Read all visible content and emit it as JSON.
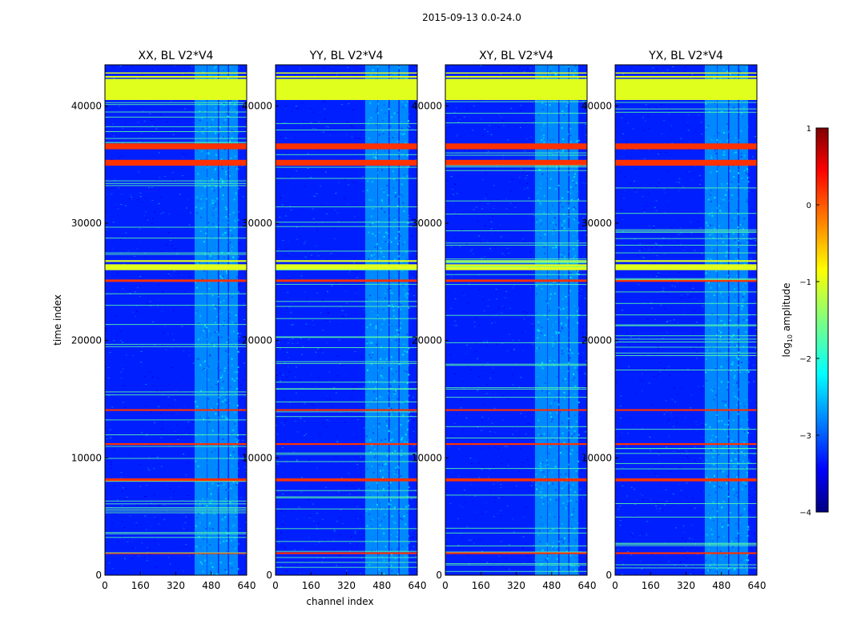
{
  "figure": {
    "suptitle": "2015-09-13 0.0-24.0"
  },
  "chart_data": [
    {
      "type": "heatmap",
      "title": "XX, BL V2*V4",
      "xlabel": "",
      "ylabel": "time index",
      "xlim": [
        0,
        640
      ],
      "ylim": [
        0,
        43500
      ],
      "xticks": [
        0,
        160,
        320,
        480,
        640
      ],
      "yticks": [
        0,
        10000,
        20000,
        30000,
        40000
      ],
      "tick_labels_x": [
        "0",
        "160",
        "320",
        "480",
        "640"
      ],
      "tick_labels_y": [
        "0",
        "10000",
        "20000",
        "30000",
        "40000"
      ],
      "background_log10_amplitude": -3.3,
      "flagged_time_bands": [
        {
          "start": 40500,
          "end": 42300,
          "log10": -1.0
        },
        {
          "start": 42400,
          "end": 42550,
          "log10": -1.0
        },
        {
          "start": 42750,
          "end": 42850,
          "log10": -1.0
        },
        {
          "start": 36300,
          "end": 36800,
          "log10": 0.2
        },
        {
          "start": 34900,
          "end": 35400,
          "log10": 0.2
        },
        {
          "start": 26000,
          "end": 26500,
          "log10": -1.0
        },
        {
          "start": 26700,
          "end": 26850,
          "log10": -1.0
        },
        {
          "start": 25000,
          "end": 25200,
          "log10": 0.2
        },
        {
          "start": 14000,
          "end": 14150,
          "log10": 0.2
        },
        {
          "start": 11100,
          "end": 11250,
          "log10": 0.2
        },
        {
          "start": 8000,
          "end": 8250,
          "log10": 0.2
        },
        {
          "start": 1800,
          "end": 1950,
          "log10": 0.2
        }
      ],
      "active_channel_bands": [
        [
          405,
          460
        ],
        [
          462,
          510
        ],
        [
          515,
          555
        ],
        [
          560,
          600
        ]
      ]
    },
    {
      "type": "heatmap",
      "title": "YY, BL V2*V4",
      "xlabel": "channel index",
      "ylabel": "",
      "xlim": [
        0,
        640
      ],
      "ylim": [
        0,
        43500
      ],
      "xticks": [
        0,
        160,
        320,
        480,
        640
      ],
      "yticks": [
        0,
        10000,
        20000,
        30000,
        40000
      ],
      "tick_labels_x": [
        "0",
        "160",
        "320",
        "480",
        "640"
      ],
      "tick_labels_y": [
        "0",
        "10000",
        "20000",
        "30000",
        "40000"
      ],
      "background_log10_amplitude": -3.3,
      "flagged_time_bands": [
        {
          "start": 40500,
          "end": 42300,
          "log10": -1.0
        },
        {
          "start": 42400,
          "end": 42550,
          "log10": -1.0
        },
        {
          "start": 42750,
          "end": 42850,
          "log10": -1.0
        },
        {
          "start": 36300,
          "end": 36800,
          "log10": 0.2
        },
        {
          "start": 34900,
          "end": 35400,
          "log10": 0.2
        },
        {
          "start": 26000,
          "end": 26500,
          "log10": -1.0
        },
        {
          "start": 26700,
          "end": 26850,
          "log10": -1.0
        },
        {
          "start": 25000,
          "end": 25200,
          "log10": 0.2
        },
        {
          "start": 14000,
          "end": 14150,
          "log10": 0.2
        },
        {
          "start": 11100,
          "end": 11250,
          "log10": 0.2
        },
        {
          "start": 8000,
          "end": 8250,
          "log10": 0.2
        },
        {
          "start": 1800,
          "end": 1950,
          "log10": 0.2
        }
      ],
      "active_channel_bands": [
        [
          405,
          460
        ],
        [
          462,
          510
        ],
        [
          515,
          555
        ],
        [
          560,
          600
        ]
      ]
    },
    {
      "type": "heatmap",
      "title": "XY, BL V2*V4",
      "xlabel": "",
      "ylabel": "",
      "xlim": [
        0,
        640
      ],
      "ylim": [
        0,
        43500
      ],
      "xticks": [
        0,
        160,
        320,
        480,
        640
      ],
      "yticks": [
        0,
        10000,
        20000,
        30000,
        40000
      ],
      "tick_labels_x": [
        "0",
        "160",
        "320",
        "480",
        "640"
      ],
      "tick_labels_y": [
        "0",
        "10000",
        "20000",
        "30000",
        "40000"
      ],
      "background_log10_amplitude": -3.3,
      "flagged_time_bands": [
        {
          "start": 40500,
          "end": 42300,
          "log10": -1.0
        },
        {
          "start": 42400,
          "end": 42550,
          "log10": -1.0
        },
        {
          "start": 42750,
          "end": 42850,
          "log10": -1.0
        },
        {
          "start": 36300,
          "end": 36800,
          "log10": 0.2
        },
        {
          "start": 34900,
          "end": 35400,
          "log10": 0.2
        },
        {
          "start": 26000,
          "end": 26500,
          "log10": -1.0
        },
        {
          "start": 26700,
          "end": 26850,
          "log10": -1.0
        },
        {
          "start": 25000,
          "end": 25200,
          "log10": 0.2
        },
        {
          "start": 14000,
          "end": 14150,
          "log10": 0.2
        },
        {
          "start": 11100,
          "end": 11250,
          "log10": 0.2
        },
        {
          "start": 8000,
          "end": 8250,
          "log10": 0.2
        },
        {
          "start": 1800,
          "end": 1950,
          "log10": 0.2
        }
      ],
      "active_channel_bands": [
        [
          405,
          460
        ],
        [
          462,
          510
        ],
        [
          515,
          555
        ],
        [
          560,
          600
        ]
      ]
    },
    {
      "type": "heatmap",
      "title": "YX, BL V2*V4",
      "xlabel": "",
      "ylabel": "",
      "xlim": [
        0,
        640
      ],
      "ylim": [
        0,
        43500
      ],
      "xticks": [
        0,
        160,
        320,
        480,
        640
      ],
      "yticks": [
        0,
        10000,
        20000,
        30000,
        40000
      ],
      "tick_labels_x": [
        "0",
        "160",
        "320",
        "480",
        "640"
      ],
      "tick_labels_y": [
        "0",
        "10000",
        "20000",
        "30000",
        "40000"
      ],
      "background_log10_amplitude": -3.3,
      "flagged_time_bands": [
        {
          "start": 40500,
          "end": 42300,
          "log10": -1.0
        },
        {
          "start": 42400,
          "end": 42550,
          "log10": -1.0
        },
        {
          "start": 42750,
          "end": 42850,
          "log10": -1.0
        },
        {
          "start": 36300,
          "end": 36800,
          "log10": 0.2
        },
        {
          "start": 34900,
          "end": 35400,
          "log10": 0.2
        },
        {
          "start": 26000,
          "end": 26500,
          "log10": -1.0
        },
        {
          "start": 26700,
          "end": 26850,
          "log10": -1.0
        },
        {
          "start": 25000,
          "end": 25200,
          "log10": 0.2
        },
        {
          "start": 14000,
          "end": 14150,
          "log10": 0.2
        },
        {
          "start": 11100,
          "end": 11250,
          "log10": 0.2
        },
        {
          "start": 8000,
          "end": 8250,
          "log10": 0.2
        },
        {
          "start": 1800,
          "end": 1950,
          "log10": 0.2
        }
      ],
      "active_channel_bands": [
        [
          405,
          460
        ],
        [
          462,
          510
        ],
        [
          515,
          555
        ],
        [
          560,
          600
        ]
      ]
    }
  ],
  "colorbar": {
    "label_prefix": "log",
    "label_sub": "10",
    "label_suffix": " amplitude",
    "range": [
      -4,
      1
    ],
    "ticks": [
      1,
      0,
      -1,
      -2,
      -3,
      -4
    ],
    "tick_labels": [
      "1",
      "0",
      "−1",
      "−2",
      "−3",
      "−4"
    ],
    "colormap": "jet"
  },
  "colors": {
    "jet_stops": [
      "#00007f",
      "#0000ff",
      "#007fff",
      "#00ffff",
      "#7fff7f",
      "#ffff00",
      "#ff7f00",
      "#ff0000",
      "#7f0000"
    ]
  }
}
